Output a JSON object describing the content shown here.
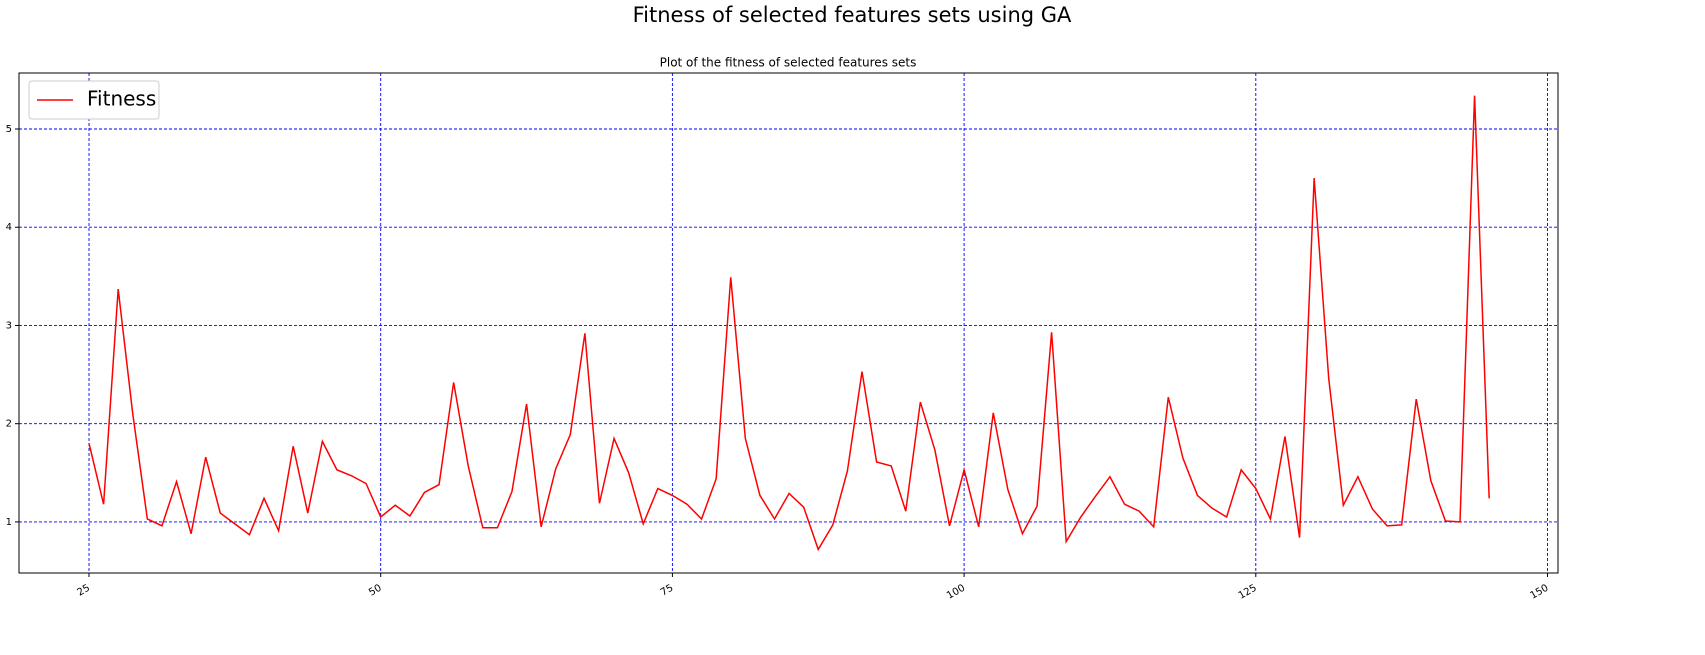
{
  "chart_data": {
    "type": "line",
    "title": "Fitness of selected features sets using GA",
    "subtitle": "Plot of the fitness of selected features sets",
    "x": [
      25,
      26.25,
      27.5,
      28.75,
      30,
      31.25,
      32.5,
      33.75,
      35,
      36.25,
      37.5,
      38.75,
      40,
      41.25,
      42.5,
      43.75,
      45,
      46.25,
      47.5,
      48.75,
      50,
      51.25,
      52.5,
      53.75,
      55,
      56.25,
      57.5,
      58.75,
      60,
      61.25,
      62.5,
      63.75,
      65,
      66.25,
      67.5,
      68.75,
      70,
      71.25,
      72.5,
      73.75,
      75,
      76.25,
      77.5,
      78.75,
      80,
      81.25,
      82.5,
      83.75,
      85,
      86.25,
      87.5,
      88.75,
      90,
      91.25,
      92.5,
      93.75,
      95,
      96.25,
      97.5,
      98.75,
      100,
      101.25,
      102.5,
      103.75,
      105,
      106.25,
      107.5,
      108.75,
      110,
      111.25,
      112.5,
      113.75,
      115,
      116.25,
      117.5,
      118.75,
      120,
      121.25,
      122.5,
      123.75,
      125,
      126.25,
      127.5,
      128.75,
      130,
      131.25,
      132.5,
      133.75,
      135,
      136.25,
      137.5,
      138.75,
      140,
      141.25,
      142.5,
      143.75,
      145
    ],
    "series": [
      {
        "name": "Fitness",
        "color": "#ff0000",
        "values": [
          1.8,
          1.18,
          3.37,
          2.1,
          1.03,
          0.96,
          1.41,
          0.88,
          1.66,
          1.09,
          0.98,
          0.87,
          1.24,
          0.91,
          1.77,
          1.09,
          1.82,
          1.53,
          1.47,
          1.39,
          1.05,
          1.17,
          1.06,
          1.3,
          1.38,
          2.42,
          1.57,
          0.94,
          0.94,
          1.31,
          2.2,
          0.95,
          1.54,
          1.89,
          2.92,
          1.19,
          1.85,
          1.5,
          0.98,
          1.34,
          1.27,
          1.18,
          1.03,
          1.44,
          3.49,
          1.85,
          1.27,
          1.03,
          1.29,
          1.15,
          0.72,
          0.97,
          1.52,
          2.53,
          1.61,
          1.57,
          1.11,
          2.22,
          1.73,
          0.96,
          1.53,
          0.95,
          2.11,
          1.33,
          0.88,
          1.16,
          2.93,
          0.8,
          1.05,
          1.26,
          1.46,
          1.18,
          1.11,
          0.95,
          2.27,
          1.65,
          1.27,
          1.14,
          1.05,
          1.53,
          1.34,
          1.03,
          1.87,
          0.84,
          4.5,
          2.46,
          1.17,
          1.46,
          1.13,
          0.96,
          0.97,
          2.25,
          1.42,
          1.01,
          1.0,
          5.34,
          1.24
        ]
      }
    ],
    "xlim": [
      19,
      150.9
    ],
    "ylim": [
      0.48,
      5.57
    ],
    "xticks": [
      25,
      50,
      75,
      100,
      125,
      150
    ],
    "yticks": [
      1,
      2,
      3,
      4,
      5
    ],
    "grid": true,
    "grid_color": "#0000ff",
    "legend": "upper-left"
  }
}
